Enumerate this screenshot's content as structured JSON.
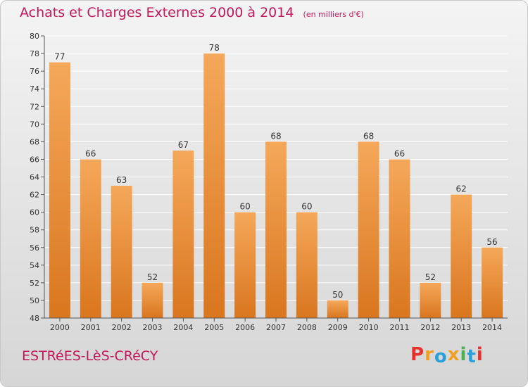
{
  "header": {
    "title": "Achats et Charges Externes 2000 à 2014",
    "subtitle": "(en milliers d'€)"
  },
  "footer": {
    "commune": "ESTRéES-LèS-CRéCY",
    "brand": "Proxiti"
  },
  "colors": {
    "title": "#c2185b",
    "bar_light": "#f5a85a",
    "bar_dark": "#d9761e",
    "logo_letters": [
      "#e8322e",
      "#f0a020",
      "#2aa0d8",
      "#f0a020",
      "#4caf50",
      "#2aa0d8",
      "#e8322e"
    ]
  },
  "chart_data": {
    "type": "bar",
    "title": "Achats et Charges Externes 2000 à 2014",
    "categories": [
      "2000",
      "2001",
      "2002",
      "2003",
      "2004",
      "2005",
      "2006",
      "2007",
      "2008",
      "2009",
      "2010",
      "2011",
      "2012",
      "2013",
      "2014"
    ],
    "values": [
      77,
      66,
      63,
      52,
      67,
      78,
      60,
      68,
      60,
      50,
      68,
      66,
      52,
      62,
      56
    ],
    "ylim": [
      48,
      80
    ],
    "yticks": [
      48,
      50,
      52,
      54,
      56,
      58,
      60,
      62,
      64,
      66,
      68,
      70,
      72,
      74,
      76,
      78,
      80
    ],
    "grid": true,
    "data_labels": true
  }
}
